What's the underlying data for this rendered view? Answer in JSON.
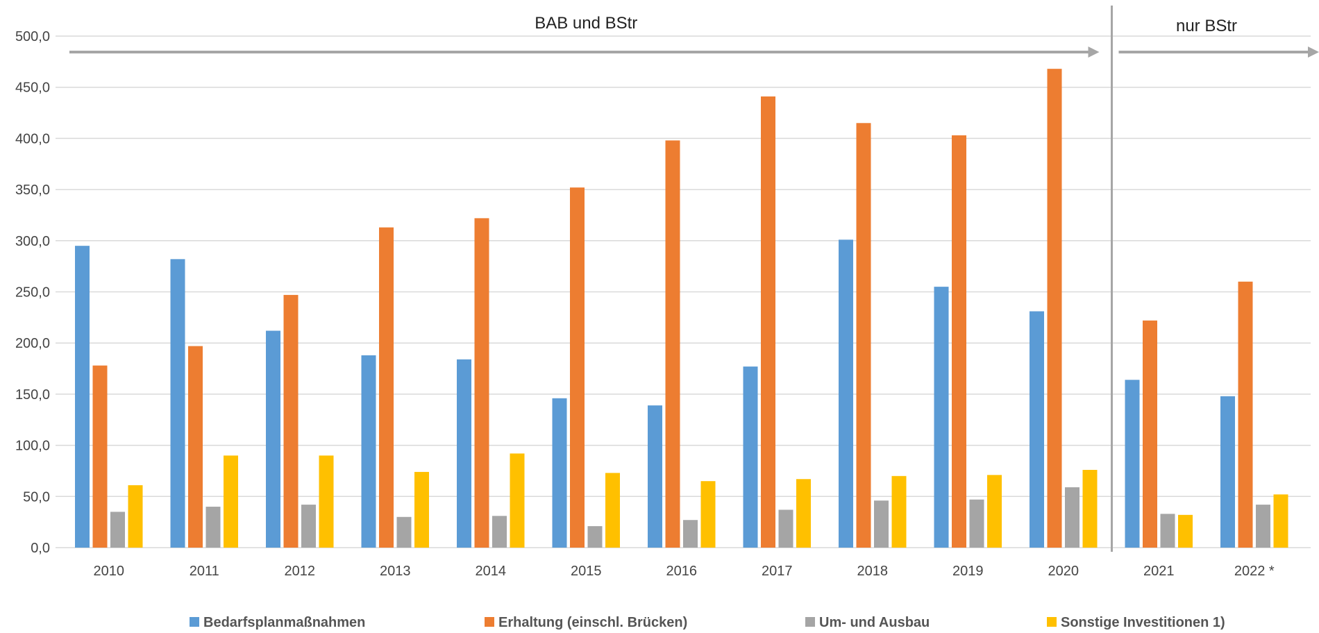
{
  "chart_data": {
    "type": "bar",
    "categories": [
      "2010",
      "2011",
      "2012",
      "2013",
      "2014",
      "2015",
      "2016",
      "2017",
      "2018",
      "2019",
      "2020",
      "2021",
      "2022 *"
    ],
    "series": [
      {
        "name": "Bedarfsplanmaßnahmen",
        "color": "#5B9BD5",
        "values": [
          295,
          282,
          212,
          188,
          184,
          146,
          139,
          177,
          301,
          255,
          231,
          164,
          148
        ]
      },
      {
        "name": "Erhaltung (einschl. Brücken)",
        "color": "#ED7D31",
        "values": [
          178,
          197,
          247,
          313,
          322,
          352,
          398,
          441,
          415,
          403,
          468,
          222,
          260
        ]
      },
      {
        "name": "Um- und Ausbau",
        "color": "#A5A5A5",
        "values": [
          35,
          40,
          42,
          30,
          31,
          21,
          27,
          37,
          46,
          47,
          59,
          33,
          42
        ]
      },
      {
        "name": "Sonstige Investitionen 1)",
        "color": "#FFC000",
        "values": [
          61,
          90,
          90,
          74,
          92,
          73,
          65,
          67,
          70,
          71,
          76,
          32,
          52
        ]
      }
    ],
    "ylim": [
      0,
      500
    ],
    "yticks": [
      "0,0",
      "50,0",
      "100,0",
      "150,0",
      "200,0",
      "250,0",
      "300,0",
      "350,0",
      "400,0",
      "450,0",
      "500,0"
    ],
    "ytick_values": [
      0,
      50,
      100,
      150,
      200,
      250,
      300,
      350,
      400,
      450,
      500
    ],
    "grid": true,
    "legend_position": "bottom",
    "sections": [
      {
        "label": "BAB und BStr",
        "from": "2010",
        "to": "2020"
      },
      {
        "label": "nur BStr",
        "from": "2021",
        "to": "2022 *"
      }
    ],
    "colors": {
      "grid": "#D9D9D9",
      "divider": "#A6A6A6",
      "arrow": "#A6A6A6"
    }
  }
}
